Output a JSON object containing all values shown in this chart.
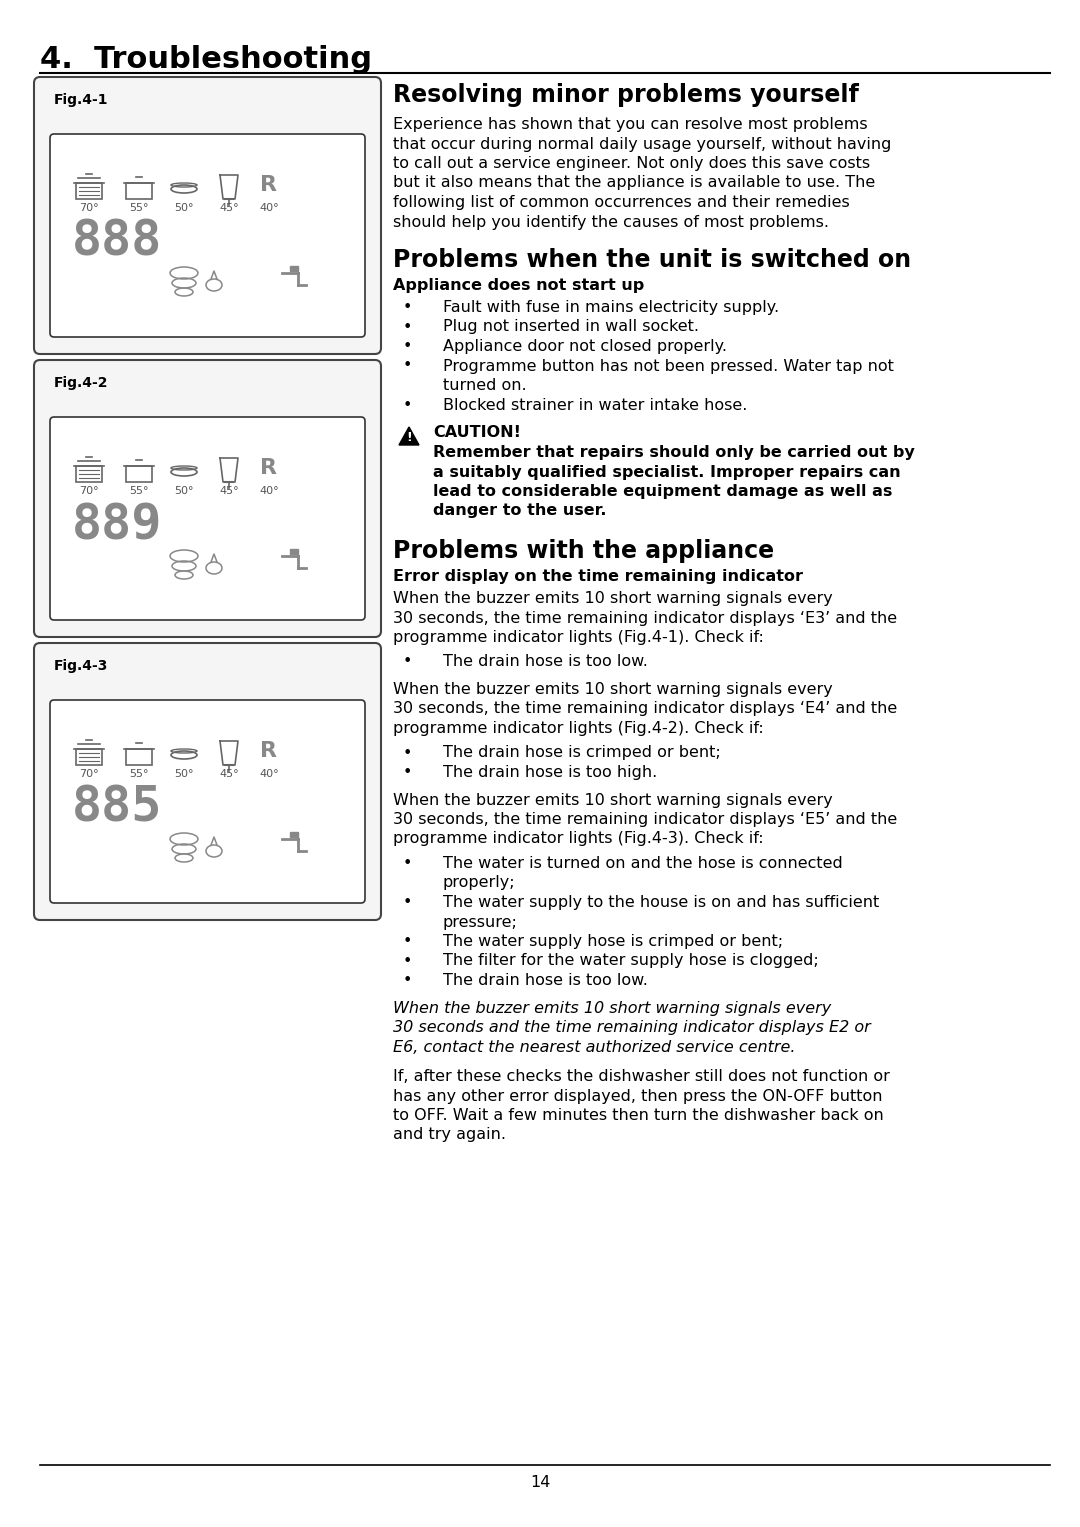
{
  "title": "4.  Troubleshooting",
  "page_number": "14",
  "bg": "#ffffff",
  "section1_title": "Resolving minor problems yourself",
  "section1_body": [
    "Experience has shown that you can resolve most problems",
    "that occur during normal daily usage yourself, without having",
    "to call out a service engineer. Not only does this save costs",
    "but it also means that the appliance is available to use. The",
    "following list of common occurrences and their remedies",
    "should help you identify the causes of most problems."
  ],
  "section2_title": "Problems when the unit is switched on",
  "section2_sub": "Appliance does not start up",
  "section2_bullets": [
    [
      "Fault with fuse in mains electricity supply."
    ],
    [
      "Plug not inserted in wall socket."
    ],
    [
      "Appliance door not closed properly."
    ],
    [
      "Programme button has not been pressed. Water tap not",
      "turned on."
    ],
    [
      "Blocked strainer in water intake hose."
    ]
  ],
  "caution_title": "CAUTION!",
  "caution_body": [
    "Remember that repairs should only be carried out by",
    "a suitably qualified specialist. Improper repairs can",
    "lead to considerable equipment damage as well as",
    "danger to the user."
  ],
  "section3_title": "Problems with the appliance",
  "section3_sub": "Error display on the time remaining indicator",
  "section3_para1": [
    "When the buzzer emits 10 short warning signals every",
    "30 seconds, the time remaining indicator displays ‘E3’ and the",
    "programme indicator lights (Fig.4-1). Check if:"
  ],
  "section3_para1_bold_parts": [
    "(Fig.4-1)"
  ],
  "section3_bullet1": [
    [
      "The drain hose is too low."
    ]
  ],
  "section3_para2": [
    "When the buzzer emits 10 short warning signals every",
    "30 seconds, the time remaining indicator displays ‘E4’ and the",
    "programme indicator lights (Fig.4-2). Check if:"
  ],
  "section3_bullets2": [
    [
      "The drain hose is crimped or bent;"
    ],
    [
      "The drain hose is too high."
    ]
  ],
  "section3_para3": [
    "When the buzzer emits 10 short warning signals every",
    "30 seconds, the time remaining indicator displays ‘E5’ and the",
    "programme indicator lights (Fig.4-3). Check if:"
  ],
  "section3_bullets3": [
    [
      "The water is turned on and the hose is connected",
      "properly;"
    ],
    [
      "The water supply to the house is on and has sufficient",
      "pressure;"
    ],
    [
      "The water supply hose is crimped or bent;"
    ],
    [
      "The filter for the water supply hose is clogged;"
    ],
    [
      "The drain hose is too low."
    ]
  ],
  "section3_para4": [
    "When the buzzer emits 10 short warning signals every",
    "30 seconds and the time remaining indicator displays E2 or",
    "E6, contact the nearest authorized service centre."
  ],
  "section3_para5": [
    "If, after these checks the dishwasher still does not function or",
    "has any other error displayed, then press the ON-OFF button",
    "to OFF. Wait a few minutes then turn the dishwasher back on",
    "and try again."
  ],
  "fig_labels": [
    "Fig.4-1",
    "Fig.4-2",
    "Fig.4-3"
  ],
  "fig_digits": [
    "888",
    "889",
    "885"
  ],
  "temps": [
    "70°",
    "55°",
    "50°",
    "45°",
    "40°"
  ]
}
